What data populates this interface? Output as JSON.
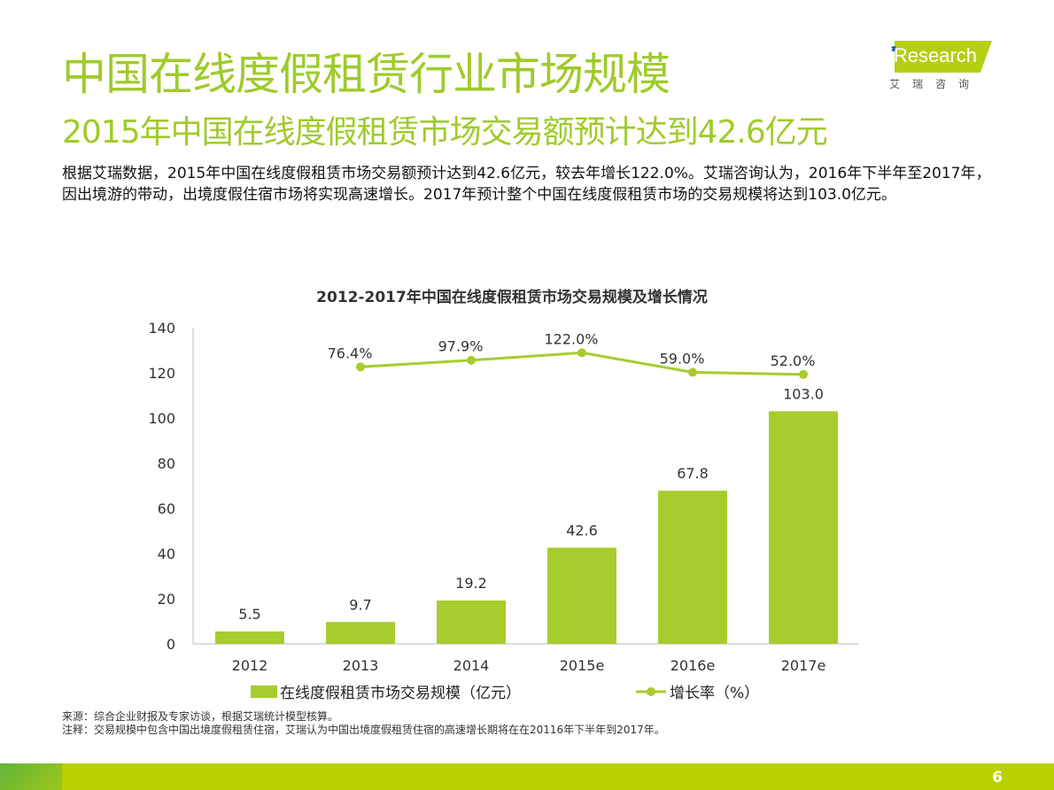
{
  "header": {
    "title": "中国在线度假租赁行业市场规模",
    "subtitle": "2015年中国在线度假租赁市场交易额预计达到42.6亿元",
    "description": "根据艾瑞数据，2015年中国在线度假租赁市场交易额预计达到42.6亿元，较去年增长122.0%。艾瑞咨询认为，2016年下半年至2017年，因出境游的带动，出境度假住宿市场将实现高速增长。2017年预计整个中国在线度假租赁市场的交易规模将达到103.0亿元。"
  },
  "logo": {
    "brand": "iResearch",
    "cn": "艾瑞咨询"
  },
  "chart_data": {
    "type": "bar+line",
    "title": "2012-2017年中国在线度假租赁市场交易规模及增长情况",
    "categories": [
      "2012",
      "2013",
      "2014",
      "2015e",
      "2016e",
      "2017e"
    ],
    "series": [
      {
        "name": "在线度假租赁市场交易规模（亿元）",
        "type": "bar",
        "values": [
          5.5,
          9.7,
          19.2,
          42.6,
          67.8,
          103.0
        ],
        "labels": [
          "5.5",
          "9.7",
          "19.2",
          "42.6",
          "67.8",
          "103.0"
        ],
        "color": "#a8cc2e"
      },
      {
        "name": "增长率（%）",
        "type": "line",
        "values": [
          null,
          76.4,
          97.9,
          122.0,
          59.0,
          52.0
        ],
        "labels": [
          "",
          "76.4%",
          "97.9%",
          "122.0%",
          "59.0%",
          "52.0%"
        ],
        "color": "#a8cc2e"
      }
    ],
    "ylim": [
      0,
      140
    ],
    "yticks": [
      "0",
      "20",
      "40",
      "60",
      "80",
      "100",
      "120",
      "140"
    ],
    "legend": "bottom",
    "grid": false
  },
  "notes": {
    "source": "来源：综合企业财报及专家访谈，根据艾瑞统计模型核算。",
    "note": "注释：交易规模中包含中国出境度假租赁住宿，艾瑞认为中国出境度假租赁住宿的高速增长期将在在20116年下半年到2017年。"
  },
  "page_number": "6"
}
